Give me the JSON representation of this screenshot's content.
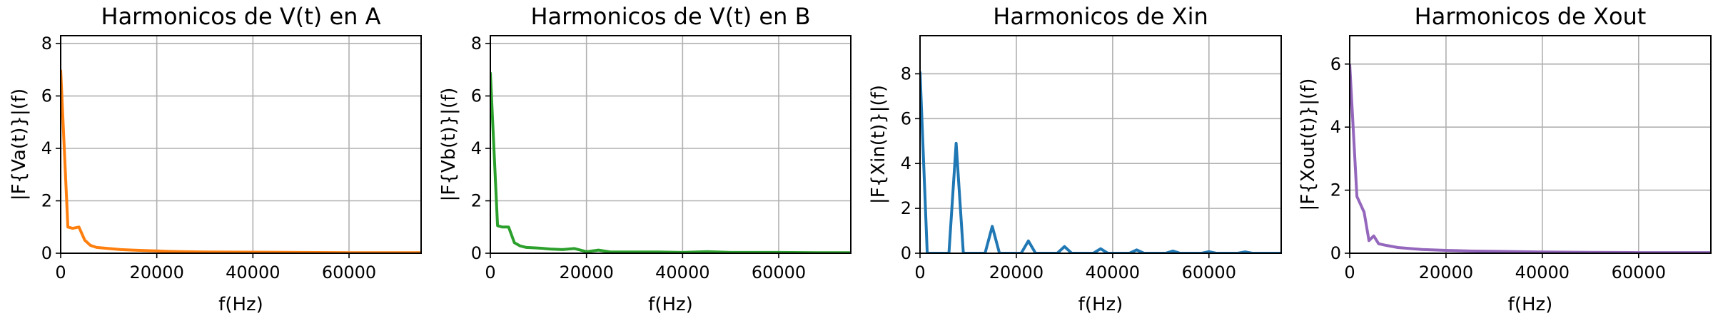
{
  "chart_data": [
    {
      "type": "line",
      "title": "Harmonicos de V(t) en A",
      "xlabel": "f(Hz)",
      "ylabel": "|F{Va(t)}|(f)",
      "xlim": [
        0,
        75000
      ],
      "ylim": [
        0,
        8.3
      ],
      "xticks": [
        0,
        20000,
        40000,
        60000
      ],
      "yticks": [
        0,
        2,
        4,
        6,
        8
      ],
      "grid": true,
      "color": "#ff7f0e",
      "x": [
        0,
        1500,
        2500,
        3800,
        5000,
        6200,
        7500,
        10000,
        12500,
        15000,
        17500,
        20000,
        22500,
        25000,
        30000,
        40000,
        50000,
        60000,
        75000
      ],
      "values": [
        7.0,
        1.0,
        0.95,
        1.0,
        0.5,
        0.3,
        0.22,
        0.18,
        0.14,
        0.12,
        0.1,
        0.09,
        0.07,
        0.06,
        0.05,
        0.04,
        0.03,
        0.02,
        0.02
      ]
    },
    {
      "type": "line",
      "title": "Harmonicos de V(t) en B",
      "xlabel": "f(Hz)",
      "ylabel": "|F{Vb(t)}|(f)",
      "xlim": [
        0,
        75000
      ],
      "ylim": [
        0,
        8.3
      ],
      "xticks": [
        0,
        20000,
        40000,
        60000
      ],
      "yticks": [
        0,
        2,
        4,
        6,
        8
      ],
      "grid": true,
      "color": "#2ca02c",
      "x": [
        0,
        1500,
        2500,
        3800,
        5000,
        6200,
        7500,
        10000,
        12500,
        15000,
        17500,
        20000,
        22500,
        25000,
        30000,
        35000,
        40000,
        45000,
        50000,
        60000,
        70000,
        75000
      ],
      "values": [
        6.9,
        1.05,
        1.0,
        1.0,
        0.4,
        0.28,
        0.22,
        0.2,
        0.16,
        0.14,
        0.18,
        0.06,
        0.12,
        0.05,
        0.05,
        0.05,
        0.03,
        0.06,
        0.03,
        0.03,
        0.02,
        0.02
      ]
    },
    {
      "type": "line",
      "title": "Harmonicos de Xin",
      "xlabel": "f(Hz)",
      "ylabel": "|F{Xin(t)}|(f)",
      "xlim": [
        0,
        75000
      ],
      "ylim": [
        0,
        9.7
      ],
      "xticks": [
        0,
        20000,
        40000,
        60000
      ],
      "yticks": [
        0,
        2,
        4,
        6,
        8
      ],
      "grid": true,
      "color": "#1f77b4",
      "x": [
        0,
        1500,
        6000,
        7500,
        9000,
        13500,
        15000,
        16500,
        21000,
        22500,
        24000,
        28500,
        30000,
        31500,
        36000,
        37500,
        39000,
        43500,
        45000,
        46500,
        51000,
        52500,
        54000,
        58500,
        60000,
        61500,
        66000,
        67500,
        69000,
        75000
      ],
      "values": [
        8.1,
        0,
        0,
        4.9,
        0,
        0,
        1.2,
        0,
        0,
        0.55,
        0,
        0,
        0.3,
        0,
        0,
        0.2,
        0,
        0,
        0.15,
        0,
        0,
        0.1,
        0,
        0,
        0.07,
        0,
        0,
        0.06,
        0,
        0
      ]
    },
    {
      "type": "line",
      "title": "Harmonicos de Xout",
      "xlabel": "f(Hz)",
      "ylabel": "|F{Xout(t)}|(f)",
      "xlim": [
        0,
        75000
      ],
      "ylim": [
        0,
        6.9
      ],
      "xticks": [
        0,
        20000,
        40000,
        60000
      ],
      "yticks": [
        0,
        2,
        4,
        6
      ],
      "grid": true,
      "color": "#9467bd",
      "x": [
        0,
        1500,
        3000,
        4000,
        5000,
        6000,
        7500,
        10000,
        12500,
        15000,
        20000,
        25000,
        30000,
        40000,
        50000,
        60000,
        75000
      ],
      "values": [
        6.0,
        1.8,
        1.3,
        0.4,
        0.55,
        0.3,
        0.25,
        0.18,
        0.15,
        0.12,
        0.09,
        0.07,
        0.06,
        0.04,
        0.03,
        0.02,
        0.02
      ]
    }
  ]
}
